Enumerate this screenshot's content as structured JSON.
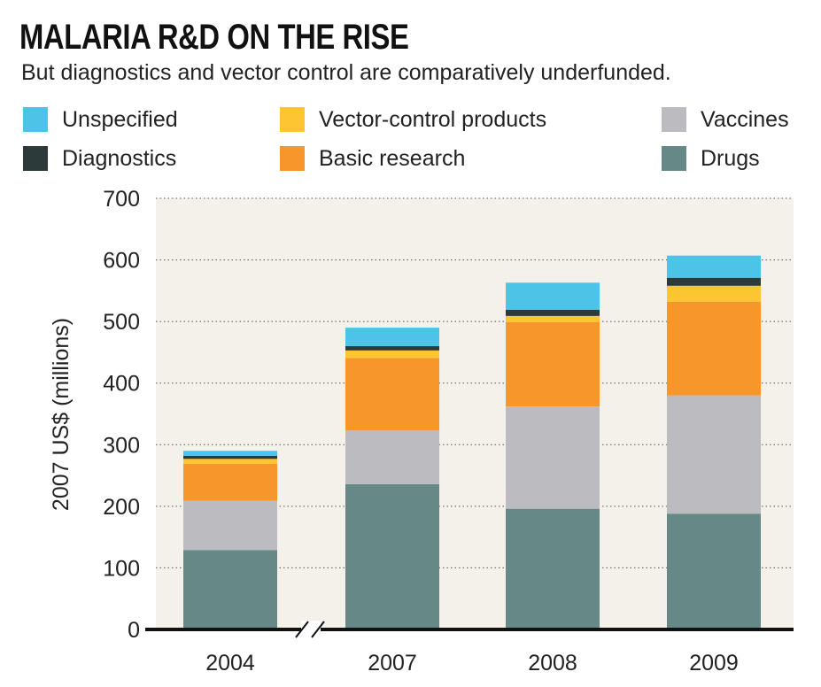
{
  "header": {
    "title": "MALARIA R&D ON THE RISE",
    "subtitle": "But diagnostics and vector control are comparatively underfunded."
  },
  "legend": [
    {
      "label": "Unspecified",
      "color": "#4ec3e8"
    },
    {
      "label": "Diagnostics",
      "color": "#2d3a3a"
    },
    {
      "label": "Vector-control products",
      "color": "#fcc531"
    },
    {
      "label": "Basic research",
      "color": "#f7962b"
    },
    {
      "label": "Vaccines",
      "color": "#bcbcc0"
    },
    {
      "label": "Drugs",
      "color": "#668886"
    }
  ],
  "chart_data": {
    "type": "bar",
    "stacked": true,
    "categories": [
      "2004",
      "2007",
      "2008",
      "2009"
    ],
    "ylabel": "2007 US$ (millions)",
    "ylim": [
      0,
      700
    ],
    "yticks": [
      0,
      100,
      200,
      300,
      400,
      500,
      600,
      700
    ],
    "grid": "horizontal dotted",
    "axis_break_between": [
      "2004",
      "2007"
    ],
    "background": "#f4f1ea",
    "series": [
      {
        "name": "Drugs",
        "color": "#668886",
        "values": [
          129,
          236,
          196,
          188
        ]
      },
      {
        "name": "Vaccines",
        "color": "#bcbcc0",
        "values": [
          80,
          87,
          166,
          192
        ]
      },
      {
        "name": "Basic research",
        "color": "#f7962b",
        "values": [
          60,
          118,
          137,
          152
        ]
      },
      {
        "name": "Vector-control products",
        "color": "#fcc531",
        "values": [
          8,
          12,
          10,
          26
        ]
      },
      {
        "name": "Diagnostics",
        "color": "#2d3a3a",
        "values": [
          5,
          7,
          10,
          13
        ]
      },
      {
        "name": "Unspecified",
        "color": "#4ec3e8",
        "values": [
          8,
          30,
          44,
          36
        ]
      }
    ]
  }
}
